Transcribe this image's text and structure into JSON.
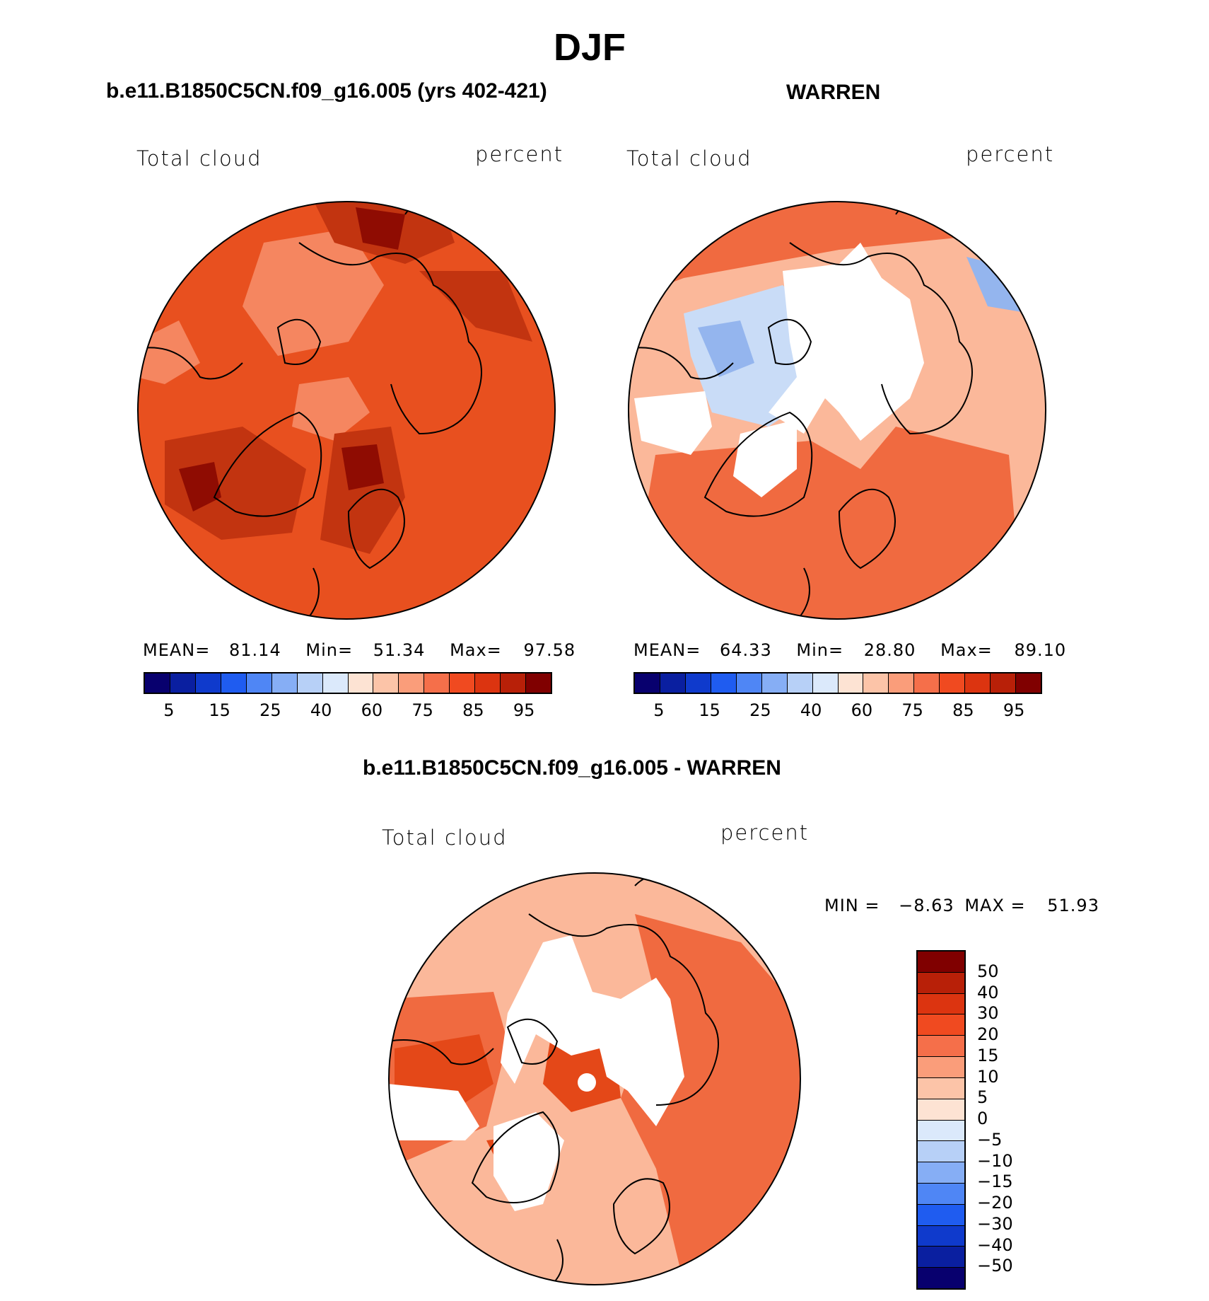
{
  "title": "DJF",
  "panels": [
    {
      "title": "b.e11.B1850C5CN.f09_g16.005 (yrs 402-421)",
      "left_label": "Total cloud",
      "right_label": "percent",
      "stats": {
        "mean_label": "MEAN=",
        "mean": "81.14",
        "min_label": "Min=",
        "min": "51.34",
        "max_label": "Max=",
        "max": "97.58"
      }
    },
    {
      "title": "WARREN",
      "left_label": "Total cloud",
      "right_label": "percent",
      "stats": {
        "mean_label": "MEAN=",
        "mean": "64.33",
        "min_label": "Min=",
        "min": "28.80",
        "max_label": "Max=",
        "max": "89.10"
      }
    },
    {
      "title": "b.e11.B1850C5CN.f09_g16.005 - WARREN",
      "left_label": "Total cloud",
      "right_label": "percent",
      "stats": {
        "min_label": "MIN =",
        "min": "−8.63",
        "max_label": "MAX =",
        "max": "51.93"
      }
    }
  ],
  "abs_colorbar": {
    "colors": [
      "#08006e",
      "#0a1fa0",
      "#0f3acc",
      "#1f5cf0",
      "#4f86f5",
      "#86aef5",
      "#b7d0f7",
      "#dbe9fb",
      "#fde3d3",
      "#fcc4a8",
      "#fa9d7a",
      "#f56f4a",
      "#f04a20",
      "#dc3410",
      "#b82008",
      "#800000"
    ],
    "tick_labels": [
      "5",
      "15",
      "25",
      "40",
      "60",
      "75",
      "85",
      "95"
    ]
  },
  "diff_colorbar": {
    "colors": [
      "#800000",
      "#b82008",
      "#dc3410",
      "#f04a20",
      "#f56f4a",
      "#fa9d7a",
      "#fcc4a8",
      "#fde3d3",
      "#dbe9fb",
      "#b7d0f7",
      "#86aef5",
      "#4f86f5",
      "#1f5cf0",
      "#0f3acc",
      "#0a1fa0",
      "#08006e"
    ],
    "tick_labels": [
      "50",
      "40",
      "30",
      "20",
      "15",
      "10",
      "5",
      "0",
      "−5",
      "−10",
      "−15",
      "−20",
      "−30",
      "−40",
      "−50"
    ]
  },
  "map_fills": {
    "panel1_base": "#e8501f",
    "panel1_dark": "#c23410",
    "panel1_deep": "#8f0c02",
    "panel1_light": "#f58660",
    "panel2_base": "#fbb89a",
    "panel2_warm": "#f06a40",
    "panel2_cool": "#c9dcf7",
    "panel2_blue": "#94b5ee",
    "panel3_base": "#fbb89a",
    "panel3_warm": "#f06a40",
    "panel3_hot": "#e44818",
    "missing": "#ffffff"
  }
}
